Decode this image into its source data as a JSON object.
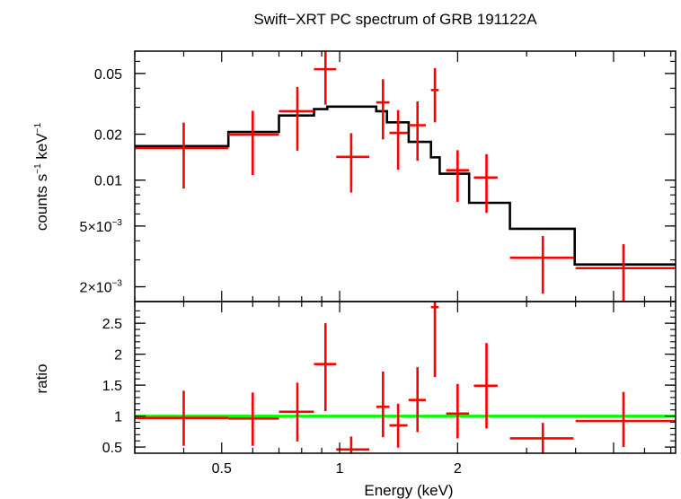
{
  "chart_data": [
    {
      "type": "scatter",
      "title": "Swift−XRT PC spectrum of GRB 191122A",
      "ylabel_main": "counts s",
      "ylabel_sup1": "−1",
      "ylabel_mid": " keV",
      "ylabel_sup2": "−1",
      "yscale": "log",
      "xscale": "log",
      "xlim": [
        0.3,
        7.2
      ],
      "ylim": [
        0.0016,
        0.07
      ],
      "yticks": [
        {
          "value": 0.05,
          "label": "0.05"
        },
        {
          "value": 0.02,
          "label": "0.02"
        },
        {
          "value": 0.01,
          "label": "0.01"
        },
        {
          "value": 0.005,
          "label": "5×10",
          "sup": "−3"
        },
        {
          "value": 0.002,
          "label": "2×10",
          "sup": "−3"
        }
      ],
      "series": [
        {
          "kind": "data",
          "color": "#ff0000",
          "points": [
            {
              "x": 0.4,
              "xlo": 0.3,
              "xhi": 0.52,
              "y": 0.0162,
              "ylo": 0.0088,
              "yhi": 0.0238
            },
            {
              "x": 0.6,
              "xlo": 0.52,
              "xhi": 0.7,
              "y": 0.0199,
              "ylo": 0.0108,
              "yhi": 0.0285
            },
            {
              "x": 0.78,
              "xlo": 0.7,
              "xhi": 0.86,
              "y": 0.0283,
              "ylo": 0.0156,
              "yhi": 0.0408
            },
            {
              "x": 0.92,
              "xlo": 0.86,
              "xhi": 0.98,
              "y": 0.0533,
              "ylo": 0.0312,
              "yhi": 0.0727
            },
            {
              "x": 1.07,
              "xlo": 0.98,
              "xhi": 1.19,
              "y": 0.0142,
              "ylo": 0.0083,
              "yhi": 0.0203
            },
            {
              "x": 1.29,
              "xlo": 1.24,
              "xhi": 1.34,
              "y": 0.0323,
              "ylo": 0.0185,
              "yhi": 0.0458
            },
            {
              "x": 1.41,
              "xlo": 1.34,
              "xhi": 1.49,
              "y": 0.0204,
              "ylo": 0.0117,
              "yhi": 0.0288
            },
            {
              "x": 1.58,
              "xlo": 1.5,
              "xhi": 1.66,
              "y": 0.0229,
              "ylo": 0.0134,
              "yhi": 0.0328
            },
            {
              "x": 1.75,
              "xlo": 1.71,
              "xhi": 1.79,
              "y": 0.0389,
              "ylo": 0.0239,
              "yhi": 0.0542
            },
            {
              "x": 2.0,
              "xlo": 1.87,
              "xhi": 2.14,
              "y": 0.0116,
              "ylo": 0.0072,
              "yhi": 0.0157
            },
            {
              "x": 2.37,
              "xlo": 2.2,
              "xhi": 2.53,
              "y": 0.0104,
              "ylo": 0.0061,
              "yhi": 0.0148
            },
            {
              "x": 3.3,
              "xlo": 2.72,
              "xhi": 3.95,
              "y": 0.0031,
              "ylo": 0.0018,
              "yhi": 0.0043
            },
            {
              "x": 5.3,
              "xlo": 4.0,
              "xhi": 7.2,
              "y": 0.00265,
              "ylo": 0.0016,
              "yhi": 0.0038
            }
          ]
        },
        {
          "kind": "model",
          "color": "#000000",
          "steps": [
            {
              "x0": 0.3,
              "x1": 0.52,
              "y": 0.0167
            },
            {
              "x0": 0.52,
              "x1": 0.7,
              "y": 0.0207
            },
            {
              "x0": 0.7,
              "x1": 0.86,
              "y": 0.0265
            },
            {
              "x0": 0.86,
              "x1": 0.93,
              "y": 0.0292
            },
            {
              "x0": 0.93,
              "x1": 1.24,
              "y": 0.0303
            },
            {
              "x0": 1.24,
              "x1": 1.32,
              "y": 0.0283
            },
            {
              "x0": 1.32,
              "x1": 1.5,
              "y": 0.0239
            },
            {
              "x0": 1.5,
              "x1": 1.71,
              "y": 0.0178
            },
            {
              "x0": 1.71,
              "x1": 1.8,
              "y": 0.0141
            },
            {
              "x0": 1.8,
              "x1": 2.14,
              "y": 0.011
            },
            {
              "x0": 2.14,
              "x1": 2.72,
              "y": 0.0071
            },
            {
              "x0": 2.72,
              "x1": 3.98,
              "y": 0.0048
            },
            {
              "x0": 3.98,
              "x1": 7.2,
              "y": 0.0028
            }
          ]
        }
      ]
    },
    {
      "type": "scatter",
      "ylabel": "ratio",
      "xlabel": "Energy (keV)",
      "xscale": "log",
      "xlim": [
        0.3,
        7.2
      ],
      "ylim": [
        0.4,
        2.85
      ],
      "xticks": [
        {
          "value": 0.5,
          "label": "0.5"
        },
        {
          "value": 1,
          "label": "1"
        },
        {
          "value": 2,
          "label": "2"
        }
      ],
      "yticks": [
        {
          "value": 0.5,
          "label": "0.5"
        },
        {
          "value": 1,
          "label": "1"
        },
        {
          "value": 1.5,
          "label": "1.5"
        },
        {
          "value": 2,
          "label": "2"
        },
        {
          "value": 2.5,
          "label": "2.5"
        }
      ],
      "reference_line": {
        "y": 1,
        "color": "#00ff00"
      },
      "series": [
        {
          "kind": "data",
          "color": "#ff0000",
          "points": [
            {
              "x": 0.4,
              "xlo": 0.3,
              "xhi": 0.52,
              "y": 0.97,
              "ylo": 0.52,
              "yhi": 1.41
            },
            {
              "x": 0.6,
              "xlo": 0.52,
              "xhi": 0.7,
              "y": 0.96,
              "ylo": 0.52,
              "yhi": 1.38
            },
            {
              "x": 0.78,
              "xlo": 0.7,
              "xhi": 0.86,
              "y": 1.07,
              "ylo": 0.59,
              "yhi": 1.54
            },
            {
              "x": 0.92,
              "xlo": 0.86,
              "xhi": 0.98,
              "y": 1.84,
              "ylo": 1.08,
              "yhi": 2.5
            },
            {
              "x": 1.07,
              "xlo": 0.98,
              "xhi": 1.19,
              "y": 0.46,
              "ylo": 0.4,
              "yhi": 0.67
            },
            {
              "x": 1.29,
              "xlo": 1.24,
              "xhi": 1.34,
              "y": 1.15,
              "ylo": 0.66,
              "yhi": 1.72
            },
            {
              "x": 1.41,
              "xlo": 1.34,
              "xhi": 1.49,
              "y": 0.85,
              "ylo": 0.49,
              "yhi": 1.2
            },
            {
              "x": 1.58,
              "xlo": 1.5,
              "xhi": 1.66,
              "y": 1.26,
              "ylo": 0.74,
              "yhi": 1.79
            },
            {
              "x": 1.75,
              "xlo": 1.71,
              "xhi": 1.79,
              "y": 2.76,
              "ylo": 1.63,
              "yhi": 2.85
            },
            {
              "x": 2.0,
              "xlo": 1.87,
              "xhi": 2.14,
              "y": 1.04,
              "ylo": 0.64,
              "yhi": 1.52
            },
            {
              "x": 2.37,
              "xlo": 2.2,
              "xhi": 2.53,
              "y": 1.49,
              "ylo": 0.8,
              "yhi": 2.18
            },
            {
              "x": 3.3,
              "xlo": 2.72,
              "xhi": 3.95,
              "y": 0.64,
              "ylo": 0.4,
              "yhi": 0.89
            },
            {
              "x": 5.3,
              "xlo": 4.0,
              "xhi": 7.2,
              "y": 0.92,
              "ylo": 0.5,
              "yhi": 1.39
            }
          ]
        }
      ]
    }
  ]
}
